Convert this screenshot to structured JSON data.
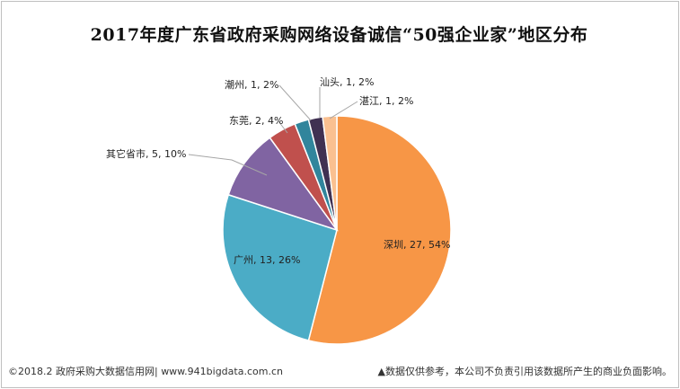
{
  "chart_data": {
    "type": "pie",
    "title": "2017年度广东省政府采购网络设备诚信“50强企业家”地区分布",
    "slices": [
      {
        "label": "深圳",
        "value": 27,
        "percent": "54%",
        "color": "#F79646"
      },
      {
        "label": "广州",
        "value": 13,
        "percent": "26%",
        "color": "#4BACC6"
      },
      {
        "label": "其它省市",
        "value": 5,
        "percent": "10%",
        "color": "#8064A2"
      },
      {
        "label": "东莞",
        "value": 2,
        "percent": "4%",
        "color": "#C0504D"
      },
      {
        "label": "潮州",
        "value": 1,
        "percent": "2%",
        "color": "#31859C"
      },
      {
        "label": "汕头",
        "value": 1,
        "percent": "2%",
        "color": "#403152"
      },
      {
        "label": "湛江",
        "value": 1,
        "percent": "2%",
        "color": "#FAC090"
      }
    ]
  },
  "footer": {
    "left": "©2018.2 政府采购大数据信用网| www.941bigdata.com.cn",
    "right": "▲数据仅供参考，本公司不负责引用该数据所产生的商业负面影响。"
  }
}
